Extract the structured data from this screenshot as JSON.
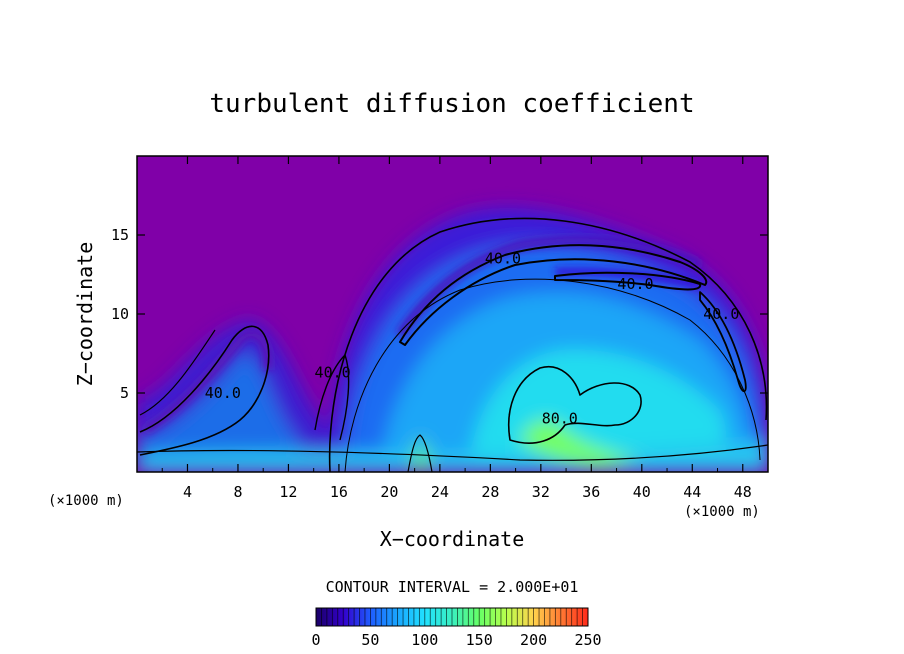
{
  "chart_data": {
    "type": "heatmap",
    "title": "turbulent diffusion coefficient",
    "xlabel": "X−coordinate",
    "ylabel": "Z−coordinate",
    "x_unit_left": "(×1000 m)",
    "x_unit_right": "(×1000 m)",
    "xlim": [
      0,
      50
    ],
    "ylim": [
      0,
      20
    ],
    "x_ticks": [
      "4",
      "8",
      "12",
      "16",
      "20",
      "24",
      "28",
      "32",
      "36",
      "40",
      "44",
      "48"
    ],
    "y_ticks": [
      "5",
      "10",
      "15"
    ],
    "contour_interval_text": "CONTOUR INTERVAL = 2.000E+01",
    "contour_labels": [
      {
        "text": "40.0",
        "x": 29.0,
        "z": 13.5
      },
      {
        "text": "40.0",
        "x": 39.5,
        "z": 11.9
      },
      {
        "text": "40.0",
        "x": 46.3,
        "z": 10.0
      },
      {
        "text": "40.0",
        "x": 6.8,
        "z": 5.0
      },
      {
        "text": "40.0",
        "x": 15.5,
        "z": 6.3
      },
      {
        "text": "80.0",
        "x": 33.5,
        "z": 3.4
      }
    ],
    "colorbar": {
      "ticks": [
        "0",
        "50",
        "100",
        "150",
        "200",
        "250"
      ],
      "min": 0,
      "max": 250,
      "colors": [
        "#1a0066",
        "#3300cc",
        "#1f5cff",
        "#19a7ff",
        "#21e1ff",
        "#3af0c0",
        "#66ff66",
        "#b8ff4d",
        "#ffd24d",
        "#ff7a33",
        "#ff2a1a"
      ]
    },
    "colors": {
      "background_field": "#8000a8",
      "low": "#3a1adf",
      "mid": "#1e88ff",
      "high": "#22e4f2",
      "peak": "#7fff55"
    }
  }
}
